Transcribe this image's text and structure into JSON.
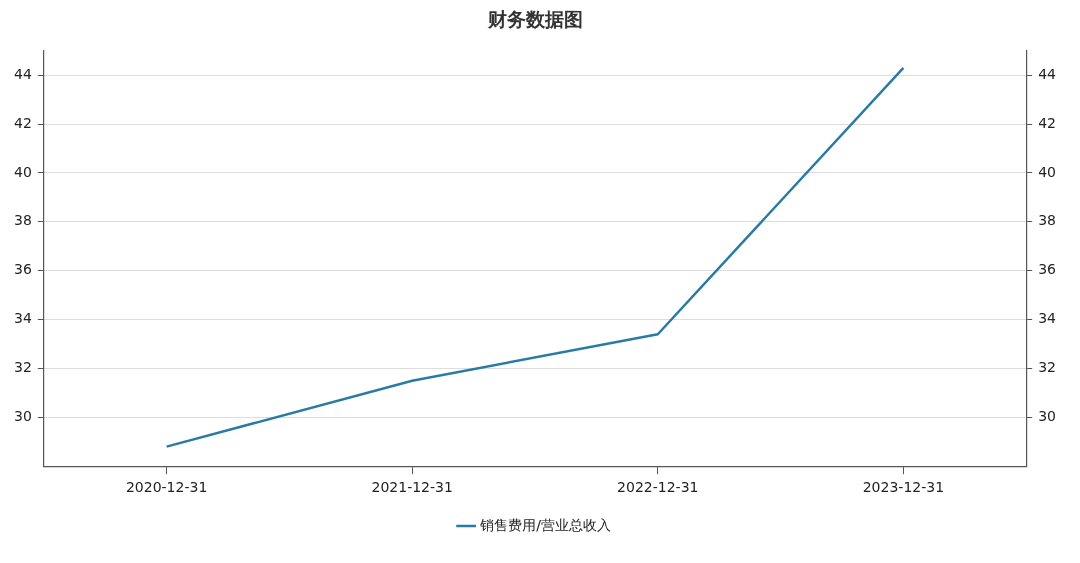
{
  "chart_data": {
    "type": "line",
    "title": "财务数据图",
    "categories": [
      "2020-12-31",
      "2021-12-31",
      "2022-12-31",
      "2023-12-31"
    ],
    "series": [
      {
        "name": "销售费用/营业总收入",
        "color": "#2a7ba4",
        "values": [
          28.8,
          31.5,
          33.4,
          44.3
        ]
      }
    ],
    "ylim": [
      28,
      45
    ],
    "yticks": [
      30,
      32,
      34,
      36,
      38,
      40,
      42,
      44
    ],
    "y2lim": [
      28,
      45
    ],
    "y2ticks": [
      30,
      32,
      34,
      36,
      38,
      40,
      42,
      44
    ],
    "grid": "y",
    "legend": "bottom",
    "marker": "none",
    "line_style": "solid"
  }
}
